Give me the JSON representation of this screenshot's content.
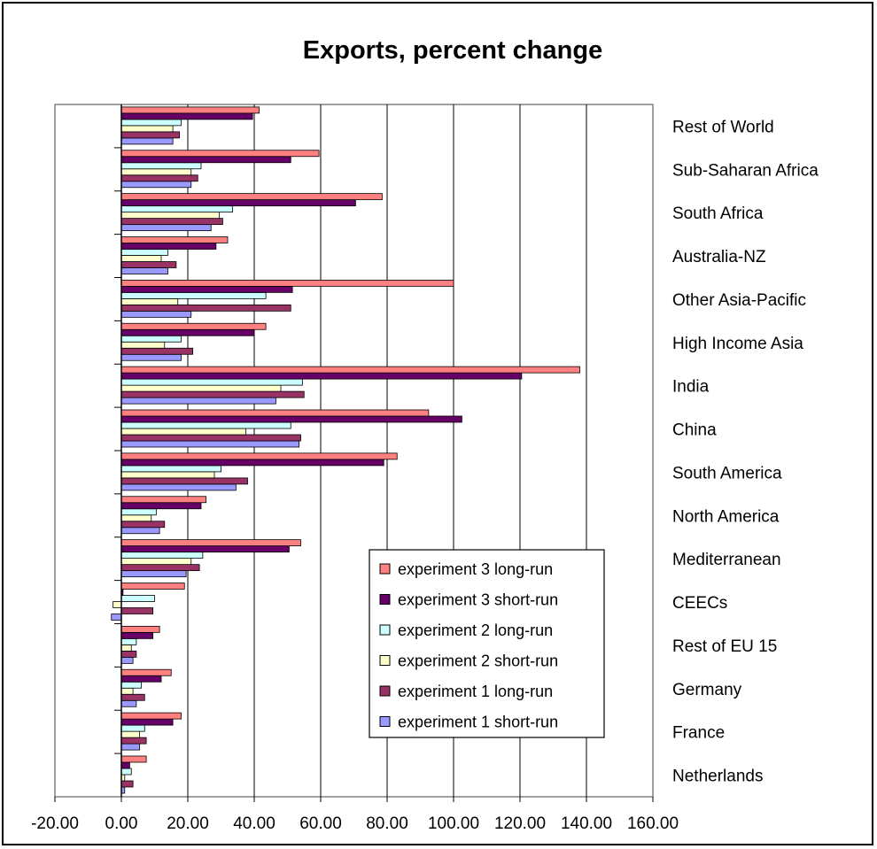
{
  "chart_data": {
    "type": "bar",
    "orientation": "horizontal",
    "title": "Exports, percent change",
    "xlabel": "",
    "ylabel": "",
    "xlim": [
      -20,
      160
    ],
    "x_ticks": [
      "-20.00",
      "0.00",
      "20.00",
      "40.00",
      "60.00",
      "80.00",
      "100.00",
      "120.00",
      "140.00",
      "160.00"
    ],
    "grid": "vertical",
    "legend_position": "bottom-right inside plot",
    "categories": [
      "Netherlands",
      "France",
      "Germany",
      "Rest of EU 15",
      "CEECs",
      "Mediterranean",
      "North America",
      "South America",
      "China",
      "India",
      "High Income Asia",
      "Other Asia-Pacific",
      "Australia-NZ",
      "South Africa",
      "Sub-Saharan Africa",
      "Rest of World"
    ],
    "series": [
      {
        "name": "experiment 1 short-run",
        "color": "#9999ff",
        "values": [
          1,
          5.5,
          4.5,
          3.5,
          -3,
          19.5,
          11.5,
          34.5,
          53.5,
          46.5,
          18,
          21,
          14,
          27,
          21,
          15.5
        ]
      },
      {
        "name": "experiment 1 long-run",
        "color": "#993366",
        "values": [
          3.5,
          7.5,
          7,
          4.5,
          9.5,
          23.5,
          13,
          38,
          54,
          55,
          21.5,
          51,
          16.5,
          30.5,
          23,
          17.5
        ]
      },
      {
        "name": "experiment 2 short-run",
        "color": "#ffffcc",
        "values": [
          1,
          5.5,
          3.5,
          3,
          -2.5,
          21,
          9,
          28,
          37.5,
          48,
          13,
          17,
          12,
          29.5,
          21,
          15.5
        ]
      },
      {
        "name": "experiment 2 long-run",
        "color": "#ccffff",
        "values": [
          3,
          7,
          6,
          4.5,
          10,
          24.5,
          10.5,
          30,
          51,
          54.5,
          18,
          43.5,
          14,
          33.5,
          24,
          18
        ]
      },
      {
        "name": "experiment 3 short-run",
        "color": "#660066",
        "values": [
          2.5,
          15.5,
          12,
          9.5,
          0.5,
          50.5,
          24,
          79,
          102.5,
          120.5,
          40,
          51.5,
          28.5,
          70.5,
          51,
          39.5
        ]
      },
      {
        "name": "experiment 3 long-run",
        "color": "#ff8080",
        "values": [
          7.5,
          18,
          15,
          11.5,
          19,
          54,
          25.5,
          83,
          92.5,
          138,
          43.5,
          100,
          32,
          78.5,
          59.5,
          41.5
        ]
      }
    ]
  }
}
